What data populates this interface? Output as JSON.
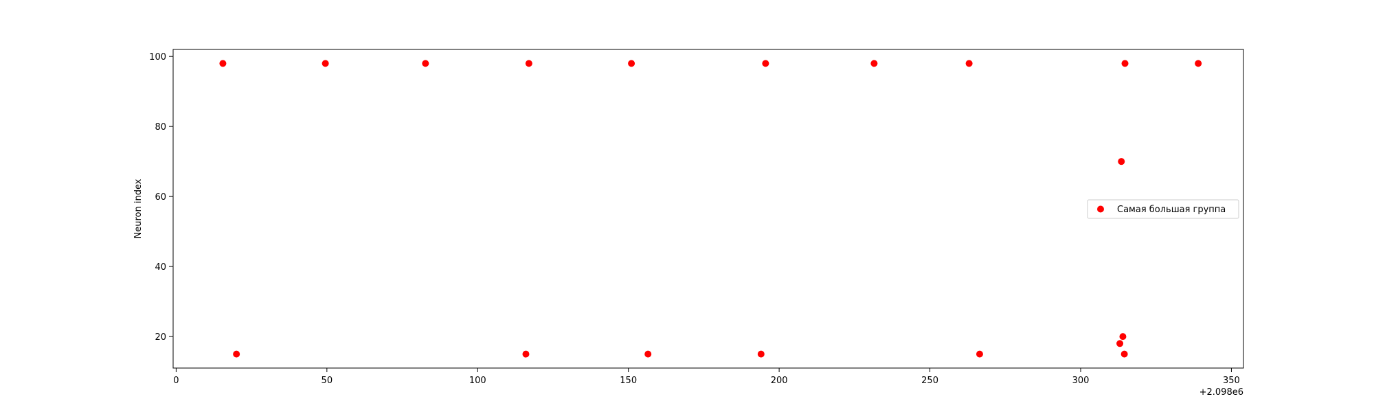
{
  "chart_data": {
    "type": "scatter",
    "title": "",
    "xlabel": "",
    "ylabel": "Neuron index",
    "x_offset_label": "+2.098e6",
    "xlim": [
      -1,
      354
    ],
    "ylim": [
      11,
      102
    ],
    "xticks": [
      0,
      50,
      100,
      150,
      200,
      250,
      300,
      350
    ],
    "yticks": [
      20,
      40,
      60,
      80,
      100
    ],
    "grid": false,
    "legend_position": "center-right",
    "series": [
      {
        "name": "Самая большая группа",
        "color": "#ff0000",
        "points": [
          {
            "x": 15.5,
            "y": 98
          },
          {
            "x": 20.0,
            "y": 15
          },
          {
            "x": 49.5,
            "y": 98
          },
          {
            "x": 82.7,
            "y": 98
          },
          {
            "x": 116.0,
            "y": 15
          },
          {
            "x": 117.0,
            "y": 98
          },
          {
            "x": 151.0,
            "y": 98
          },
          {
            "x": 156.5,
            "y": 15
          },
          {
            "x": 194.0,
            "y": 15
          },
          {
            "x": 195.5,
            "y": 98
          },
          {
            "x": 231.5,
            "y": 98
          },
          {
            "x": 263.0,
            "y": 98
          },
          {
            "x": 266.5,
            "y": 15
          },
          {
            "x": 313.0,
            "y": 18
          },
          {
            "x": 313.5,
            "y": 70
          },
          {
            "x": 314.0,
            "y": 20
          },
          {
            "x": 314.5,
            "y": 15
          },
          {
            "x": 314.7,
            "y": 98
          },
          {
            "x": 339.0,
            "y": 98
          }
        ]
      }
    ]
  }
}
